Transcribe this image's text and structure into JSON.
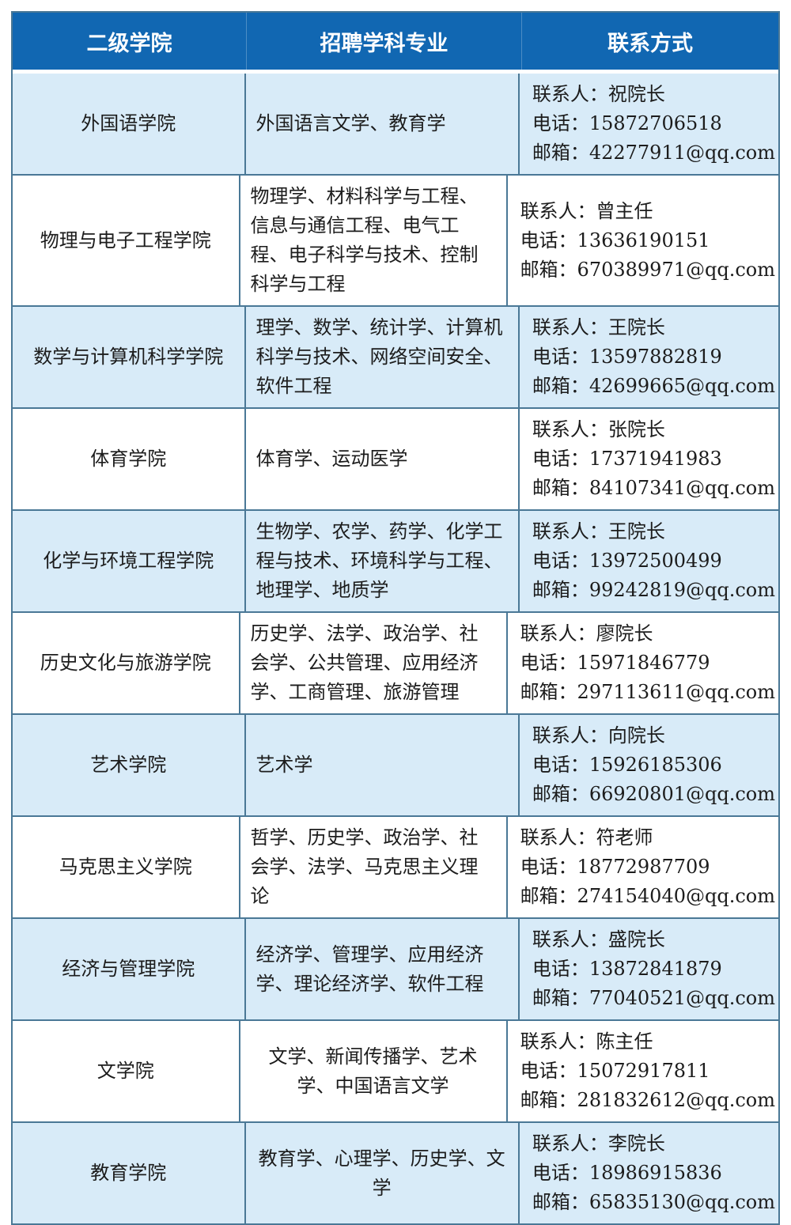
{
  "table": {
    "headers": [
      "二级学院",
      "招聘学科专业",
      "联系方式"
    ],
    "colors": {
      "header_bg": "#1167b2",
      "header_text": "#ffffff",
      "row_alt_bg": "#d8ebf8",
      "row_bg": "#ffffff",
      "border": "#4a7896",
      "text": "#1c1c1c"
    },
    "rows": [
      {
        "college": "外国语学院",
        "majors": "外国语言文学、教育学",
        "majors_align": "left",
        "contact_lines": [
          "联系人：祝院长",
          "电话：15872706518",
          "邮箱：42277911@qq.com"
        ]
      },
      {
        "college": "物理与电子工程学院",
        "majors": "物理学、材料科学与工程、信息与通信工程、电气工程、电子科学与技术、控制科学与工程",
        "majors_align": "left",
        "contact_lines": [
          "联系人：曾主任",
          "电话：13636190151",
          "邮箱：670389971@qq.com"
        ]
      },
      {
        "college": "数学与计算机科学学院",
        "majors": "理学、数学、统计学、计算机科学与技术、网络空间安全、软件工程",
        "majors_align": "left",
        "contact_lines": [
          "联系人：王院长",
          "电话：13597882819",
          "邮箱：42699665@qq.com"
        ]
      },
      {
        "college": "体育学院",
        "majors": "体育学、运动医学",
        "majors_align": "left",
        "contact_lines": [
          "联系人：张院长",
          "电话：17371941983",
          "邮箱：84107341@qq.com"
        ]
      },
      {
        "college": "化学与环境工程学院",
        "majors": "生物学、农学、药学、化学工程与技术、环境科学与工程、地理学、地质学",
        "majors_align": "left",
        "contact_lines": [
          "联系人：王院长",
          "电话：13972500499",
          "邮箱：99242819@qq.com"
        ]
      },
      {
        "college": "历史文化与旅游学院",
        "majors": "历史学、法学、政治学、社会学、公共管理、应用经济学、工商管理、旅游管理",
        "majors_align": "left",
        "contact_lines": [
          "联系人：廖院长",
          "电话：15971846779",
          "邮箱：297113611@qq.com"
        ]
      },
      {
        "college": "艺术学院",
        "majors": "艺术学",
        "majors_align": "left",
        "contact_lines": [
          "联系人：向院长",
          "电话：15926185306",
          "邮箱：66920801@qq.com"
        ]
      },
      {
        "college": "马克思主义学院",
        "majors": "哲学、历史学、政治学、社会学、法学、马克思主义理论",
        "majors_align": "left",
        "contact_lines": [
          "联系人：符老师",
          "电话：18772987709",
          "邮箱：274154040@qq.com"
        ]
      },
      {
        "college": "经济与管理学院",
        "majors": "经济学、管理学、应用经济学、理论经济学、软件工程",
        "majors_align": "left",
        "contact_lines": [
          "联系人：盛院长",
          "电话：13872841879",
          "邮箱：77040521@qq.com"
        ]
      },
      {
        "college": "文学院",
        "majors": "文学、新闻传播学、艺术学、中国语言文学",
        "majors_align": "center",
        "contact_lines": [
          "联系人：陈主任",
          "电话：15072917811",
          "邮箱：281832612@qq.com"
        ]
      },
      {
        "college": "教育学院",
        "majors": "教育学、心理学、历史学、文学",
        "majors_align": "center",
        "contact_lines": [
          "联系人：李院长",
          "电话：18986915836",
          "邮箱：65835130@qq.com"
        ]
      }
    ]
  }
}
